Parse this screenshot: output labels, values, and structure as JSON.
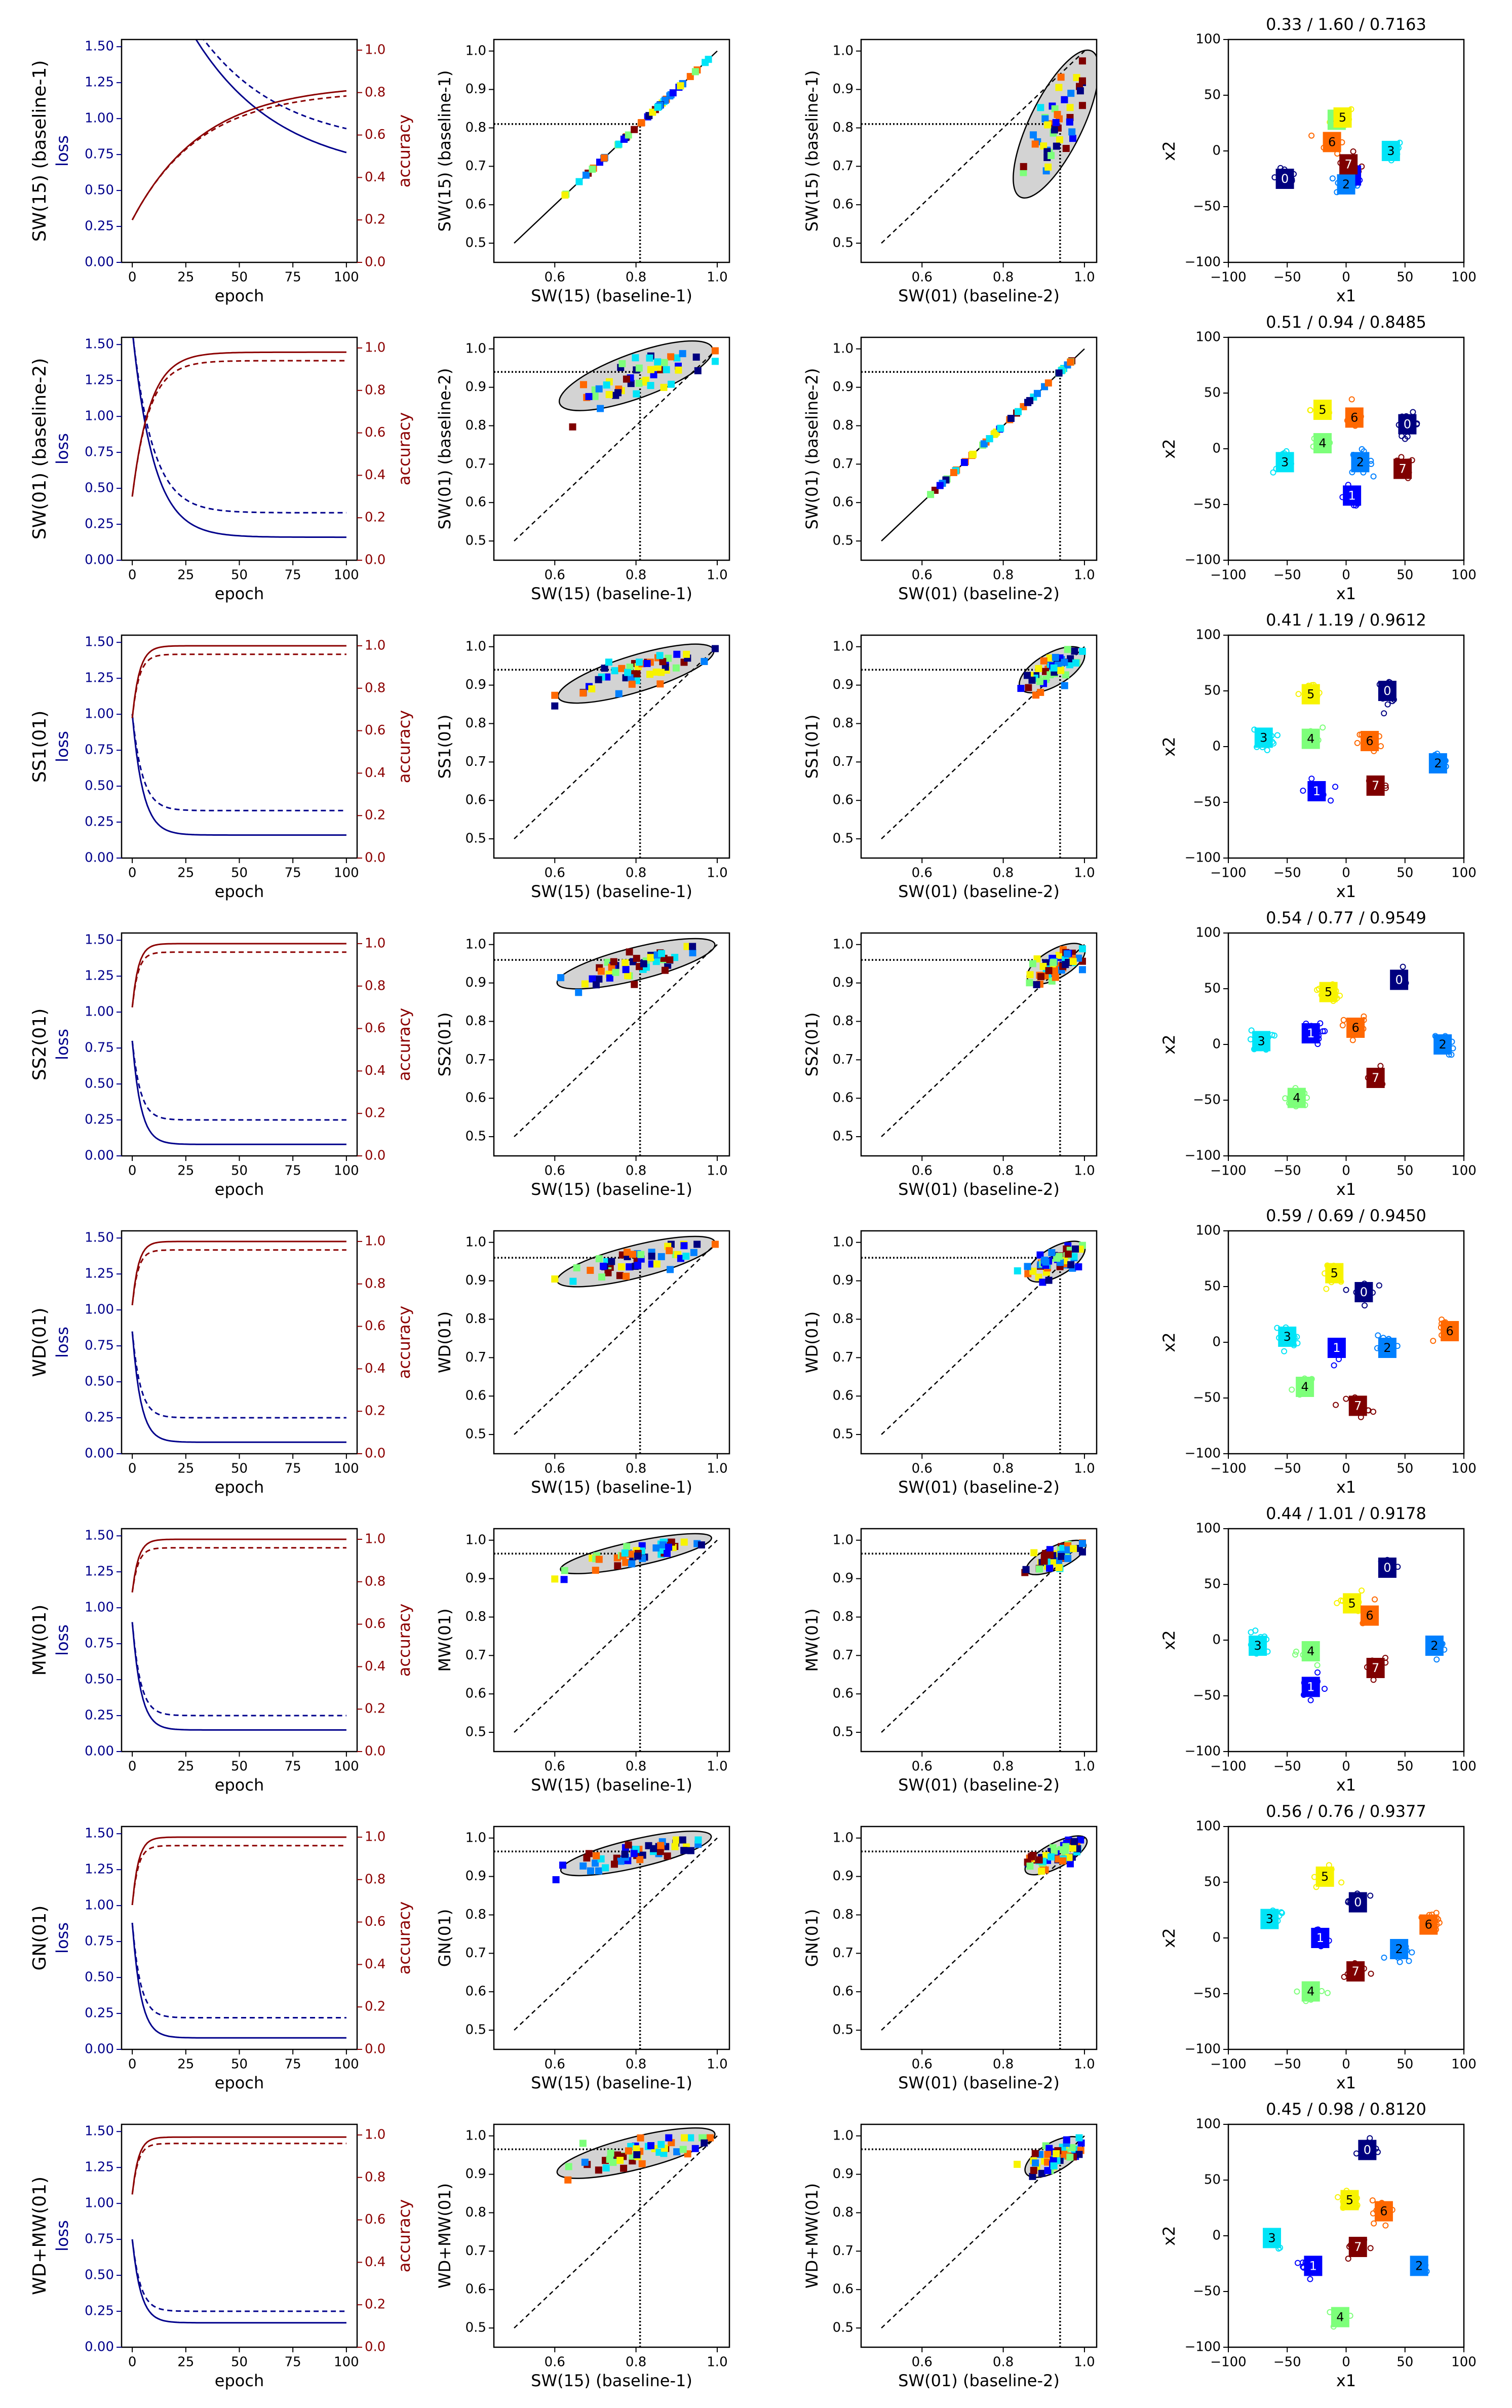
{
  "figure": {
    "colors": {
      "loss": "#00008b",
      "accuracy": "#8b0000",
      "axis": "#000000",
      "ellipse_fill": "#d3d3d3",
      "jet": [
        "#00007f",
        "#0000ff",
        "#0080ff",
        "#00e4f7",
        "#7dff7a",
        "#f7f300",
        "#ff6800",
        "#7f0000"
      ]
    },
    "tick_labels": {
      "loss_y": [
        "0.00",
        "0.25",
        "0.50",
        "0.75",
        "1.00",
        "1.25",
        "1.50"
      ],
      "acc_y": [
        "0.0",
        "0.2",
        "0.4",
        "0.6",
        "0.8",
        "1.0"
      ],
      "epoch_x": [
        "0",
        "25",
        "50",
        "75",
        "100"
      ],
      "scatter_y": [
        "0.5",
        "0.6",
        "0.7",
        "0.8",
        "0.9",
        "1.0"
      ],
      "scatter_x": [
        "0.6",
        "0.8",
        "1.0"
      ],
      "embed": [
        "−100",
        "−50",
        "0",
        "50",
        "100"
      ]
    },
    "axis_labels": {
      "epoch": "epoch",
      "loss": "loss",
      "accuracy": "accuracy",
      "x1": "x1",
      "x2": "x2",
      "baseline1": "SW(15) (baseline-1)",
      "baseline2": "SW(01) (baseline-2)"
    },
    "baseline_refs": {
      "baseline1": 0.81,
      "baseline2": 0.94
    },
    "class_labels": [
      "0",
      "1",
      "2",
      "3",
      "4",
      "5",
      "6",
      "7"
    ]
  },
  "chart_data": [
    {
      "type": "line",
      "row": 0,
      "method": "SW(15) (baseline-1)",
      "xlabel": "epoch",
      "ylabel_left": "loss",
      "ylabel_right": "accuracy",
      "xlim": [
        -5,
        105
      ],
      "ylim_left": [
        0,
        1.55
      ],
      "ylim_right": [
        0,
        1.05
      ],
      "loss_start": 2.6,
      "loss_end_train": 0.6,
      "loss_end_val": 0.8,
      "loss_rate": 0.025,
      "acc_start": 0.2,
      "acc_end_train": 0.84,
      "acc_end_val": 0.81,
      "acc_rate": 0.03
    },
    {
      "type": "scatter",
      "row": 0,
      "panel": "vs-baseline-1",
      "xlabel": "SW(15) (baseline-1)",
      "ylabel": "SW(15) (baseline-1)",
      "xlim": [
        0.5,
        1.0
      ],
      "ylim": [
        0.5,
        1.0
      ],
      "ref_x": 0.81,
      "ref_y": 0.81,
      "ellipse": null
    },
    {
      "type": "scatter",
      "row": 0,
      "panel": "vs-baseline-2",
      "xlabel": "SW(01) (baseline-2)",
      "ylabel": "SW(15) (baseline-1)",
      "xlim": [
        0.5,
        1.0
      ],
      "ylim": [
        0.5,
        1.0
      ],
      "ref_x": 0.94,
      "ref_y": 0.81,
      "ellipse": {
        "cx": 0.93,
        "cy": 0.81,
        "rx": 0.2,
        "ry": 0.065,
        "angle": 64
      }
    },
    {
      "type": "scatter",
      "row": 0,
      "panel": "embedding",
      "title": "0.33 / 1.60 / 0.7163",
      "xlabel": "x1",
      "ylabel": "x2",
      "xlim": [
        -100,
        100
      ],
      "ylim": [
        -100,
        100
      ],
      "centroids": [
        [
          -52,
          -25
        ],
        [
          5,
          -22
        ],
        [
          0,
          -30
        ],
        [
          38,
          0
        ],
        [
          -8,
          28
        ],
        [
          -3,
          30
        ],
        [
          -12,
          8
        ],
        [
          2,
          -12
        ]
      ]
    },
    {
      "type": "line",
      "row": 1,
      "method": "SW(01) (baseline-2)",
      "xlabel": "epoch",
      "ylabel_left": "loss",
      "ylabel_right": "accuracy",
      "xlim": [
        -5,
        105
      ],
      "ylim_left": [
        0,
        1.55
      ],
      "ylim_right": [
        0,
        1.05
      ],
      "loss_start": 1.6,
      "loss_end_train": 0.16,
      "loss_end_val": 0.33,
      "loss_rate": 0.1,
      "acc_start": 0.3,
      "acc_end_train": 0.98,
      "acc_end_val": 0.94,
      "acc_rate": 0.12
    },
    {
      "type": "scatter",
      "row": 1,
      "panel": "vs-baseline-1",
      "xlabel": "SW(15) (baseline-1)",
      "ylabel": "SW(01) (baseline-2)",
      "xlim": [
        0.5,
        1.0
      ],
      "ylim": [
        0.5,
        1.0
      ],
      "ref_x": 0.81,
      "ref_y": 0.94,
      "ellipse": {
        "cx": 0.8,
        "cy": 0.93,
        "rx": 0.2,
        "ry": 0.055,
        "angle": 20
      }
    },
    {
      "type": "scatter",
      "row": 1,
      "panel": "vs-baseline-2",
      "xlabel": "SW(01) (baseline-2)",
      "ylabel": "SW(01) (baseline-2)",
      "xlim": [
        0.5,
        1.0
      ],
      "ylim": [
        0.5,
        1.0
      ],
      "ref_x": 0.94,
      "ref_y": 0.94,
      "ellipse": null
    },
    {
      "type": "scatter",
      "row": 1,
      "panel": "embedding",
      "title": "0.51 / 0.94 / 0.8485",
      "xlabel": "x1",
      "ylabel": "x2",
      "xlim": [
        -100,
        100
      ],
      "ylim": [
        -100,
        100
      ],
      "centroids": [
        [
          52,
          22
        ],
        [
          5,
          -42
        ],
        [
          12,
          -12
        ],
        [
          -52,
          -12
        ],
        [
          -20,
          5
        ],
        [
          -20,
          35
        ],
        [
          7,
          28
        ],
        [
          48,
          -18
        ]
      ]
    },
    {
      "type": "line",
      "row": 2,
      "method": "SS1(01)",
      "xlabel": "epoch",
      "ylabel_left": "loss",
      "ylabel_right": "accuracy",
      "xlim": [
        -5,
        105
      ],
      "ylim_left": [
        0,
        1.55
      ],
      "ylim_right": [
        0,
        1.05
      ],
      "loss_start": 1.0,
      "loss_end_train": 0.16,
      "loss_end_val": 0.33,
      "loss_rate": 0.2,
      "acc_start": 0.66,
      "acc_end_train": 1.0,
      "acc_end_val": 0.96,
      "acc_rate": 0.3
    },
    {
      "type": "scatter",
      "row": 2,
      "panel": "vs-baseline-1",
      "xlabel": "SW(15) (baseline-1)",
      "ylabel": "SS1(01)",
      "xlim": [
        0.5,
        1.0
      ],
      "ylim": [
        0.5,
        1.0
      ],
      "ref_x": 0.81,
      "ref_y": 0.94,
      "ellipse": {
        "cx": 0.8,
        "cy": 0.93,
        "rx": 0.2,
        "ry": 0.045,
        "angle": 17
      }
    },
    {
      "type": "scatter",
      "row": 2,
      "panel": "vs-baseline-2",
      "xlabel": "SW(01) (baseline-2)",
      "ylabel": "SS1(01)",
      "xlim": [
        0.5,
        1.0
      ],
      "ylim": [
        0.5,
        1.0
      ],
      "ref_x": 0.94,
      "ref_y": 0.94,
      "ellipse": {
        "cx": 0.92,
        "cy": 0.94,
        "rx": 0.09,
        "ry": 0.04,
        "angle": 30
      }
    },
    {
      "type": "scatter",
      "row": 2,
      "panel": "embedding",
      "title": "0.41 / 1.19 / 0.9612",
      "xlabel": "x1",
      "ylabel": "x2",
      "xlim": [
        -100,
        100
      ],
      "ylim": [
        -100,
        100
      ],
      "centroids": [
        [
          35,
          50
        ],
        [
          -25,
          -40
        ],
        [
          78,
          -15
        ],
        [
          -70,
          8
        ],
        [
          -30,
          7
        ],
        [
          -30,
          47
        ],
        [
          20,
          5
        ],
        [
          25,
          -35
        ]
      ]
    },
    {
      "type": "line",
      "row": 3,
      "method": "SS2(01)",
      "xlabel": "epoch",
      "ylabel_left": "loss",
      "ylabel_right": "accuracy",
      "xlim": [
        -5,
        105
      ],
      "ylim_left": [
        0,
        1.55
      ],
      "ylim_right": [
        0,
        1.05
      ],
      "loss_start": 0.8,
      "loss_end_train": 0.08,
      "loss_end_val": 0.25,
      "loss_rate": 0.25,
      "acc_start": 0.7,
      "acc_end_train": 1.0,
      "acc_end_val": 0.96,
      "acc_rate": 0.35
    },
    {
      "type": "scatter",
      "row": 3,
      "panel": "vs-baseline-1",
      "xlabel": "SW(15) (baseline-1)",
      "ylabel": "SS2(01)",
      "xlim": [
        0.5,
        1.0
      ],
      "ylim": [
        0.5,
        1.0
      ],
      "ref_x": 0.81,
      "ref_y": 0.96,
      "ellipse": {
        "cx": 0.8,
        "cy": 0.95,
        "rx": 0.2,
        "ry": 0.04,
        "angle": 14
      }
    },
    {
      "type": "scatter",
      "row": 3,
      "panel": "vs-baseline-2",
      "xlabel": "SW(01) (baseline-2)",
      "ylabel": "SS2(01)",
      "xlim": [
        0.5,
        1.0
      ],
      "ylim": [
        0.5,
        1.0
      ],
      "ref_x": 0.94,
      "ref_y": 0.96,
      "ellipse": {
        "cx": 0.93,
        "cy": 0.95,
        "rx": 0.08,
        "ry": 0.035,
        "angle": 30
      }
    },
    {
      "type": "scatter",
      "row": 3,
      "panel": "embedding",
      "title": "0.54 / 0.77 / 0.9549",
      "xlabel": "x1",
      "ylabel": "x2",
      "xlim": [
        -100,
        100
      ],
      "ylim": [
        -100,
        100
      ],
      "centroids": [
        [
          45,
          58
        ],
        [
          -30,
          10
        ],
        [
          82,
          0
        ],
        [
          -72,
          3
        ],
        [
          -42,
          -48
        ],
        [
          -15,
          47
        ],
        [
          8,
          15
        ],
        [
          25,
          -30
        ]
      ]
    },
    {
      "type": "line",
      "row": 4,
      "method": "WD(01)",
      "xlabel": "epoch",
      "ylabel_left": "loss",
      "ylabel_right": "accuracy",
      "xlim": [
        -5,
        105
      ],
      "ylim_left": [
        0,
        1.55
      ],
      "ylim_right": [
        0,
        1.05
      ],
      "loss_start": 0.85,
      "loss_end_train": 0.08,
      "loss_end_val": 0.25,
      "loss_rate": 0.25,
      "acc_start": 0.7,
      "acc_end_train": 1.0,
      "acc_end_val": 0.96,
      "acc_rate": 0.35
    },
    {
      "type": "scatter",
      "row": 4,
      "panel": "vs-baseline-1",
      "xlabel": "SW(15) (baseline-1)",
      "ylabel": "WD(01)",
      "xlim": [
        0.5,
        1.0
      ],
      "ylim": [
        0.5,
        1.0
      ],
      "ref_x": 0.81,
      "ref_y": 0.96,
      "ellipse": {
        "cx": 0.8,
        "cy": 0.95,
        "rx": 0.2,
        "ry": 0.04,
        "angle": 14
      }
    },
    {
      "type": "scatter",
      "row": 4,
      "panel": "vs-baseline-2",
      "xlabel": "SW(01) (baseline-2)",
      "ylabel": "WD(01)",
      "xlim": [
        0.5,
        1.0
      ],
      "ylim": [
        0.5,
        1.0
      ],
      "ref_x": 0.94,
      "ref_y": 0.96,
      "ellipse": {
        "cx": 0.93,
        "cy": 0.95,
        "rx": 0.08,
        "ry": 0.035,
        "angle": 30
      }
    },
    {
      "type": "scatter",
      "row": 4,
      "panel": "embedding",
      "title": "0.59 / 0.69 / 0.9450",
      "xlabel": "x1",
      "ylabel": "x2",
      "xlim": [
        -100,
        100
      ],
      "ylim": [
        -100,
        100
      ],
      "centroids": [
        [
          15,
          45
        ],
        [
          -8,
          -5
        ],
        [
          35,
          -5
        ],
        [
          -50,
          5
        ],
        [
          -35,
          -40
        ],
        [
          -10,
          62
        ],
        [
          88,
          10
        ],
        [
          10,
          -57
        ]
      ]
    },
    {
      "type": "line",
      "row": 5,
      "method": "MW(01)",
      "xlabel": "epoch",
      "ylabel_left": "loss",
      "ylabel_right": "accuracy",
      "xlim": [
        -5,
        105
      ],
      "ylim_left": [
        0,
        1.55
      ],
      "ylim_right": [
        0,
        1.05
      ],
      "loss_start": 0.9,
      "loss_end_train": 0.15,
      "loss_end_val": 0.25,
      "loss_rate": 0.25,
      "acc_start": 0.75,
      "acc_end_train": 1.0,
      "acc_end_val": 0.96,
      "acc_rate": 0.35
    },
    {
      "type": "scatter",
      "row": 5,
      "panel": "vs-baseline-1",
      "xlabel": "SW(15) (baseline-1)",
      "ylabel": "MW(01)",
      "xlim": [
        0.5,
        1.0
      ],
      "ylim": [
        0.5,
        1.0
      ],
      "ref_x": 0.81,
      "ref_y": 0.965,
      "ellipse": {
        "cx": 0.8,
        "cy": 0.965,
        "rx": 0.19,
        "ry": 0.03,
        "angle": 12
      }
    },
    {
      "type": "scatter",
      "row": 5,
      "panel": "vs-baseline-2",
      "xlabel": "SW(01) (baseline-2)",
      "ylabel": "MW(01)",
      "xlim": [
        0.5,
        1.0
      ],
      "ylim": [
        0.5,
        1.0
      ],
      "ref_x": 0.94,
      "ref_y": 0.965,
      "ellipse": {
        "cx": 0.93,
        "cy": 0.955,
        "rx": 0.08,
        "ry": 0.028,
        "angle": 25
      }
    },
    {
      "type": "scatter",
      "row": 5,
      "panel": "embedding",
      "title": "0.44 / 1.01 / 0.9178",
      "xlabel": "x1",
      "ylabel": "x2",
      "xlim": [
        -100,
        100
      ],
      "ylim": [
        -100,
        100
      ],
      "centroids": [
        [
          35,
          65
        ],
        [
          -30,
          -42
        ],
        [
          75,
          -5
        ],
        [
          -75,
          -5
        ],
        [
          -30,
          -10
        ],
        [
          5,
          33
        ],
        [
          20,
          22
        ],
        [
          25,
          -25
        ]
      ]
    },
    {
      "type": "line",
      "row": 6,
      "method": "GN(01)",
      "xlabel": "epoch",
      "ylabel_left": "loss",
      "ylabel_right": "accuracy",
      "xlim": [
        -5,
        105
      ],
      "ylim_left": [
        0,
        1.55
      ],
      "ylim_right": [
        0,
        1.05
      ],
      "loss_start": 0.88,
      "loss_end_train": 0.08,
      "loss_end_val": 0.22,
      "loss_rate": 0.25,
      "acc_start": 0.68,
      "acc_end_train": 1.0,
      "acc_end_val": 0.96,
      "acc_rate": 0.35
    },
    {
      "type": "scatter",
      "row": 6,
      "panel": "vs-baseline-1",
      "xlabel": "SW(15) (baseline-1)",
      "ylabel": "GN(01)",
      "xlim": [
        0.5,
        1.0
      ],
      "ylim": [
        0.5,
        1.0
      ],
      "ref_x": 0.81,
      "ref_y": 0.965,
      "ellipse": {
        "cx": 0.8,
        "cy": 0.96,
        "rx": 0.19,
        "ry": 0.035,
        "angle": 13
      }
    },
    {
      "type": "scatter",
      "row": 6,
      "panel": "vs-baseline-2",
      "xlabel": "SW(01) (baseline-2)",
      "ylabel": "GN(01)",
      "xlim": [
        0.5,
        1.0
      ],
      "ylim": [
        0.5,
        1.0
      ],
      "ref_x": 0.94,
      "ref_y": 0.965,
      "ellipse": {
        "cx": 0.93,
        "cy": 0.955,
        "rx": 0.085,
        "ry": 0.03,
        "angle": 28
      }
    },
    {
      "type": "scatter",
      "row": 6,
      "panel": "embedding",
      "title": "0.56 / 0.76 / 0.9377",
      "xlabel": "x1",
      "ylabel": "x2",
      "xlim": [
        -100,
        100
      ],
      "ylim": [
        -100,
        100
      ],
      "centroids": [
        [
          10,
          32
        ],
        [
          -22,
          0
        ],
        [
          45,
          -10
        ],
        [
          -65,
          17
        ],
        [
          -30,
          -48
        ],
        [
          -18,
          55
        ],
        [
          70,
          12
        ],
        [
          8,
          -30
        ]
      ]
    },
    {
      "type": "line",
      "row": 7,
      "method": "WD+MW(01)",
      "xlabel": "epoch",
      "ylabel_left": "loss",
      "ylabel_right": "accuracy",
      "xlim": [
        -5,
        105
      ],
      "ylim_left": [
        0,
        1.55
      ],
      "ylim_right": [
        0,
        1.05
      ],
      "loss_start": 0.75,
      "loss_end_train": 0.17,
      "loss_end_val": 0.25,
      "loss_rate": 0.25,
      "acc_start": 0.72,
      "acc_end_train": 0.99,
      "acc_end_val": 0.96,
      "acc_rate": 0.35
    },
    {
      "type": "scatter",
      "row": 7,
      "panel": "vs-baseline-1",
      "xlabel": "SW(15) (baseline-1)",
      "ylabel": "WD+MW(01)",
      "xlim": [
        0.5,
        1.0
      ],
      "ylim": [
        0.5,
        1.0
      ],
      "ref_x": 0.81,
      "ref_y": 0.965,
      "ellipse": {
        "cx": 0.8,
        "cy": 0.955,
        "rx": 0.2,
        "ry": 0.04,
        "angle": 14
      }
    },
    {
      "type": "scatter",
      "row": 7,
      "panel": "vs-baseline-2",
      "xlabel": "SW(01) (baseline-2)",
      "ylabel": "WD+MW(01)",
      "xlim": [
        0.5,
        1.0
      ],
      "ylim": [
        0.5,
        1.0
      ],
      "ref_x": 0.94,
      "ref_y": 0.965,
      "ellipse": {
        "cx": 0.925,
        "cy": 0.945,
        "rx": 0.08,
        "ry": 0.035,
        "angle": 30
      }
    },
    {
      "type": "scatter",
      "row": 7,
      "panel": "embedding",
      "title": "0.45 / 0.98 / 0.8120",
      "xlabel": "x1",
      "ylabel": "x2",
      "xlim": [
        -100,
        100
      ],
      "ylim": [
        -100,
        100
      ],
      "centroids": [
        [
          18,
          77
        ],
        [
          -28,
          -27
        ],
        [
          62,
          -27
        ],
        [
          -63,
          -2
        ],
        [
          -5,
          -73
        ],
        [
          3,
          32
        ],
        [
          32,
          22
        ],
        [
          10,
          -10
        ]
      ]
    }
  ]
}
